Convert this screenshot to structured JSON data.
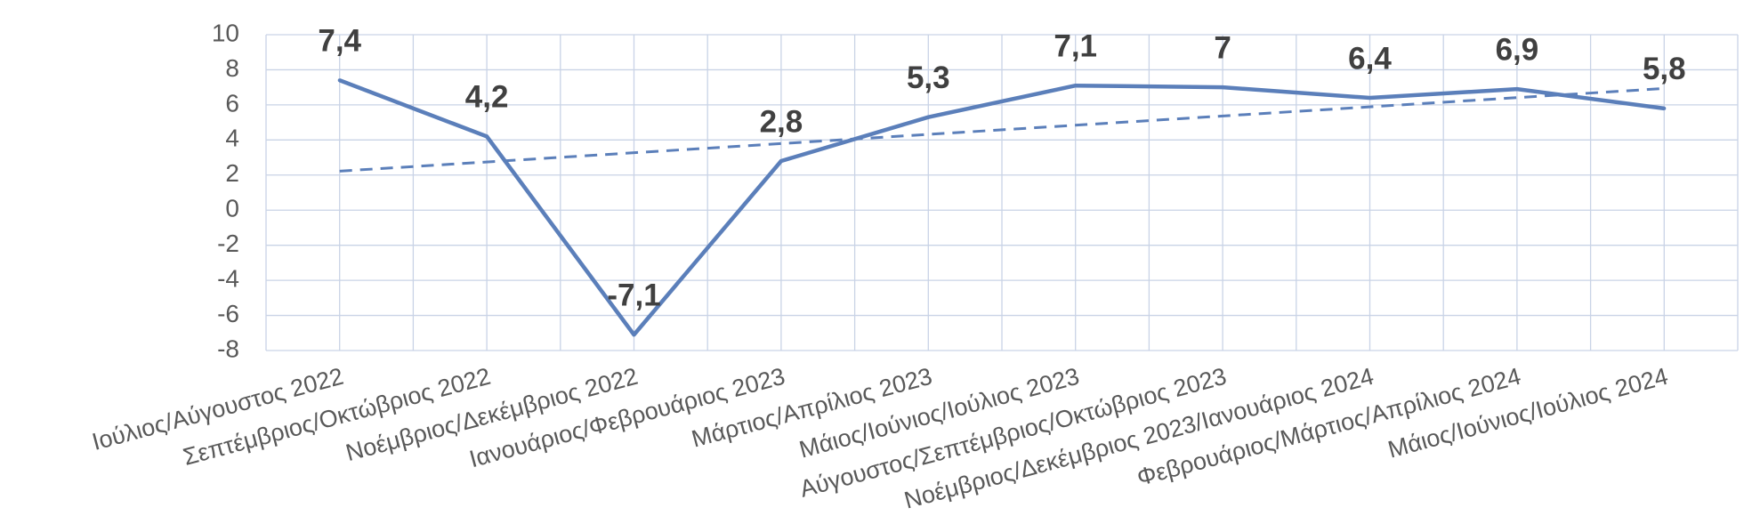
{
  "chart_data": {
    "type": "line",
    "categories": [
      "Ιούλιος/Αύγουστος 2022",
      "Σεπτέμβριος/Οκτώβριος 2022",
      "Νοέμβριος/Δεκέμβριος 2022",
      "Ιανουάριος/Φεβρουάριος  2023",
      "Μάρτιος/Απρίλιος 2023",
      "Μάιος/Ιούνιος/Ιούλιος 2023",
      "Αύγουστος/Σεπτέμβριος/Οκτώβριος 2023",
      "Νοέμβριος/Δεκέμβριος 2023/Ιανουάριος  2024",
      "Φεβρουάριος/Μάρτιος/Απρίλιος 2024",
      "Μάιος/Ιούνιος/Ιούλιος 2024"
    ],
    "values": [
      7.4,
      4.2,
      -7.1,
      2.8,
      5.3,
      7.1,
      7,
      6.4,
      6.9,
      5.8
    ],
    "value_labels": [
      "7,4",
      "4,2",
      "-7,1",
      "2,8",
      "5,3",
      "7,1",
      "7",
      "6,4",
      "6,9",
      "5,8"
    ],
    "color": "#5b7fba",
    "trendline": "linear",
    "ylim": [
      -8,
      10
    ],
    "yticks": [
      -8,
      -6,
      -4,
      -2,
      0,
      2,
      4,
      6,
      8,
      10
    ],
    "grid": true
  }
}
